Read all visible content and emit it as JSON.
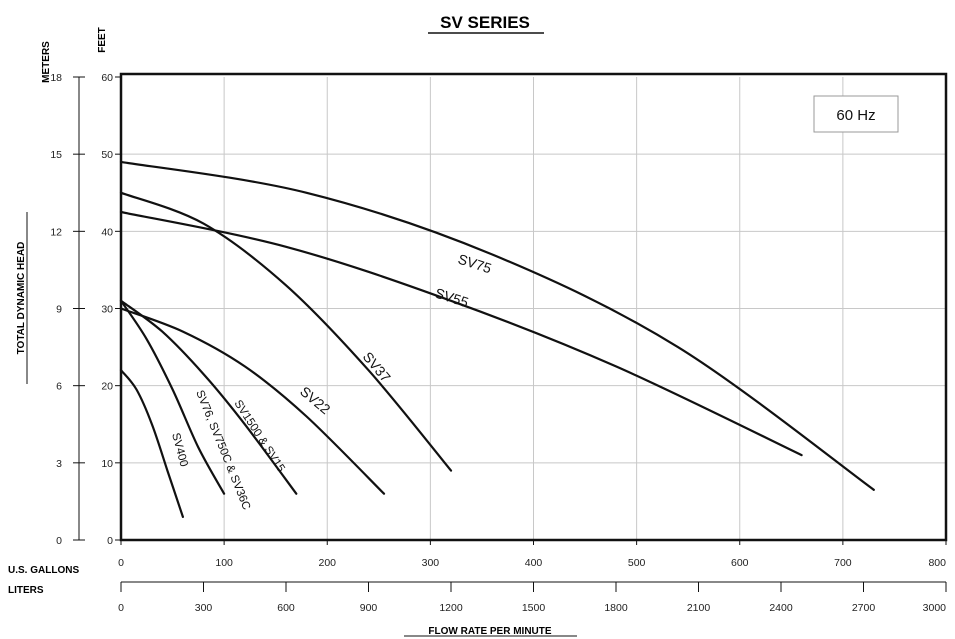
{
  "chart_data": {
    "type": "line",
    "title": "SV SERIES",
    "frequency_label": "60 Hz",
    "xlabel": "FLOW RATE PER MINUTE",
    "ylabel": "TOTAL DYNAMIC HEAD",
    "x_gallons": {
      "label": "U.S. GALLONS",
      "range": [
        0,
        800
      ],
      "ticks": [
        0,
        100,
        200,
        300,
        400,
        500,
        600,
        700,
        800
      ]
    },
    "x_liters": {
      "label": "LITERS",
      "range": [
        0,
        3000
      ],
      "ticks": [
        0,
        300,
        600,
        900,
        1200,
        1500,
        1800,
        2100,
        2400,
        2700,
        3000
      ]
    },
    "y_feet": {
      "label": "FEET",
      "range": [
        0,
        60
      ],
      "ticks": [
        0,
        10,
        20,
        30,
        40,
        50,
        60
      ]
    },
    "y_meters": {
      "label": "METERS",
      "range": [
        0,
        18
      ],
      "ticks": [
        0,
        3,
        6,
        9,
        12,
        15,
        18
      ]
    },
    "grid": true,
    "series": [
      {
        "name": "SV400",
        "x": [
          0,
          15,
          30,
          45,
          60
        ],
        "y": [
          22,
          19.5,
          15,
          9,
          3
        ]
      },
      {
        "name": "SV76, SV750C & SV36C",
        "x": [
          0,
          25,
          50,
          75,
          100
        ],
        "y": [
          31,
          26,
          19.5,
          12,
          6
        ]
      },
      {
        "name": "SV1500 & SV15",
        "x": [
          0,
          40,
          80,
          120,
          170
        ],
        "y": [
          31,
          27,
          21.5,
          15,
          6
        ]
      },
      {
        "name": "SV22",
        "x": [
          0,
          60,
          120,
          180,
          255
        ],
        "y": [
          30,
          27,
          22.5,
          16,
          6
        ]
      },
      {
        "name": "SV37",
        "x": [
          0,
          80,
          160,
          240,
          320
        ],
        "y": [
          45,
          41,
          33,
          22,
          9
        ]
      },
      {
        "name": "SV55",
        "x": [
          0,
          160,
          320,
          480,
          660
        ],
        "y": [
          42.5,
          38,
          31,
          22.5,
          11
        ]
      },
      {
        "name": "SV75",
        "x": [
          0,
          180,
          360,
          540,
          730
        ],
        "y": [
          49,
          45,
          37,
          25,
          6.5
        ]
      }
    ]
  }
}
